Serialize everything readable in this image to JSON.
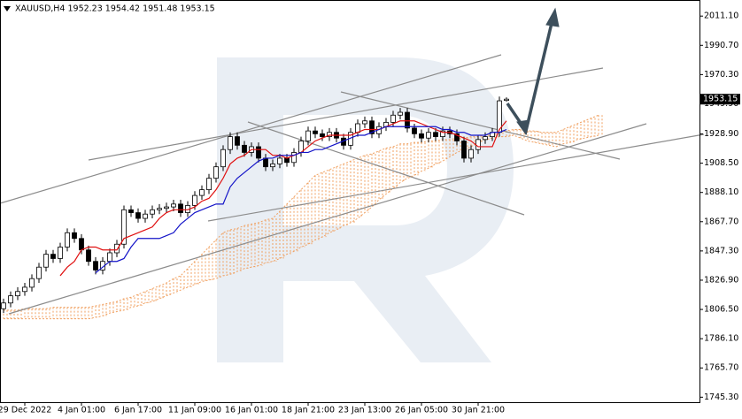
{
  "chart_data": {
    "type": "candlestick",
    "title": "XAUUSD,H4  1952.23 1954.42 1951.48 1953.15",
    "categories": [
      null,
      null,
      null,
      "29 Dec 2022",
      null,
      null,
      null,
      null,
      null,
      null,
      null,
      "4 Jan 01:00",
      null,
      null,
      null,
      null,
      null,
      null,
      null,
      "6 Jan 17:00",
      null,
      null,
      null,
      null,
      null,
      null,
      null,
      "11 Jan 09:00",
      null,
      null,
      null,
      null,
      null,
      null,
      null,
      "16 Jan 01:00",
      null,
      null,
      null,
      null,
      null,
      null,
      null,
      "18 Jan 21:00",
      null,
      null,
      null,
      null,
      null,
      null,
      null,
      "23 Jan 13:00",
      null,
      null,
      null,
      null,
      null,
      null,
      null,
      "26 Jan 05:00",
      null,
      null,
      null,
      null,
      null,
      null,
      null,
      "30 Jan 21:00",
      null,
      null,
      null,
      null
    ],
    "open": [
      1807,
      1811,
      1816,
      1819,
      1822,
      1828,
      1836,
      1845,
      1842,
      1850,
      1860,
      1856,
      1848,
      1840,
      1834,
      1840,
      1846,
      1852,
      1876,
      1874,
      1870,
      1873,
      1876,
      1877,
      1878,
      1880,
      1874,
      1879,
      1886,
      1890,
      1898,
      1906,
      1918,
      1927,
      1921,
      1916,
      1920,
      1912,
      1906,
      1908,
      1912,
      1909,
      1916,
      1924,
      1931,
      1929,
      1927,
      1930,
      1926,
      1921,
      1930,
      1936,
      1938,
      1929,
      1934,
      1937,
      1942,
      1944,
      1933,
      1929,
      1926,
      1930,
      1927,
      1931,
      1929,
      1924,
      1912,
      1918,
      1925,
      1927,
      1930,
      1952.23
    ],
    "high": [
      1814,
      1819,
      1822,
      1825,
      1831,
      1839,
      1848,
      1848,
      1853,
      1863,
      1863,
      1859,
      1851,
      1843,
      1843,
      1849,
      1855,
      1879,
      1879,
      1877,
      1876,
      1879,
      1880,
      1881,
      1883,
      1883,
      1882,
      1889,
      1893,
      1901,
      1909,
      1921,
      1930,
      1930,
      1924,
      1923,
      1923,
      1915,
      1911,
      1915,
      1915,
      1919,
      1927,
      1934,
      1934,
      1932,
      1933,
      1933,
      1929,
      1933,
      1939,
      1941,
      1941,
      1937,
      1940,
      1945,
      1947,
      1947,
      1936,
      1932,
      1933,
      1933,
      1934,
      1934,
      1932,
      1927,
      1921,
      1928,
      1930,
      1933,
      1955,
      1954.42
    ],
    "low": [
      1804,
      1808,
      1813,
      1816,
      1819,
      1825,
      1833,
      1839,
      1839,
      1847,
      1853,
      1845,
      1837,
      1831,
      1831,
      1837,
      1843,
      1849,
      1871,
      1867,
      1867,
      1870,
      1873,
      1874,
      1875,
      1871,
      1871,
      1876,
      1883,
      1887,
      1895,
      1903,
      1915,
      1918,
      1913,
      1913,
      1909,
      1903,
      1903,
      1905,
      1906,
      1906,
      1913,
      1921,
      1926,
      1924,
      1924,
      1923,
      1918,
      1918,
      1927,
      1933,
      1926,
      1926,
      1931,
      1934,
      1939,
      1930,
      1926,
      1923,
      1923,
      1924,
      1924,
      1926,
      1921,
      1909,
      1909,
      1915,
      1922,
      1924,
      1927,
      1951.48
    ],
    "close": [
      1811,
      1816,
      1819,
      1822,
      1828,
      1836,
      1845,
      1842,
      1850,
      1860,
      1856,
      1848,
      1840,
      1834,
      1840,
      1846,
      1852,
      1876,
      1874,
      1870,
      1873,
      1876,
      1877,
      1878,
      1880,
      1874,
      1879,
      1886,
      1890,
      1898,
      1906,
      1918,
      1927,
      1921,
      1916,
      1920,
      1912,
      1906,
      1908,
      1912,
      1909,
      1916,
      1924,
      1931,
      1929,
      1927,
      1930,
      1926,
      1921,
      1930,
      1936,
      1938,
      1929,
      1934,
      1937,
      1942,
      1944,
      1933,
      1929,
      1926,
      1930,
      1927,
      1931,
      1929,
      1924,
      1912,
      1918,
      1925,
      1927,
      1930,
      1952,
      1953.15
    ],
    "bull_color": "#ffffff",
    "bear_color": "#000000",
    "series": [
      {
        "color": "#e01010",
        "values": [
          null,
          null,
          null,
          null,
          null,
          null,
          null,
          null,
          1830,
          1836,
          1840,
          1848,
          1850,
          1850,
          1848,
          1848,
          1848,
          1856,
          1858,
          1860,
          1862,
          1864,
          1870,
          1874,
          1876,
          1876,
          1876,
          1878,
          1882,
          1884,
          1890,
          1898,
          1908,
          1912,
          1914,
          1918,
          1918,
          1918,
          1914,
          1914,
          1912,
          1914,
          1916,
          1920,
          1924,
          1926,
          1928,
          1928,
          1928,
          1928,
          1930,
          1932,
          1932,
          1932,
          1934,
          1936,
          1938,
          1938,
          1938,
          1936,
          1934,
          1932,
          1930,
          1930,
          1928,
          1926,
          1924,
          1920,
          1920,
          1920,
          1932,
          1938
        ]
      },
      {
        "color": "#1414c8",
        "values": [
          null,
          null,
          null,
          null,
          null,
          null,
          null,
          null,
          null,
          null,
          null,
          null,
          null,
          1832,
          1836,
          1840,
          1840,
          1842,
          1850,
          1856,
          1856,
          1856,
          1856,
          1858,
          1860,
          1866,
          1870,
          1874,
          1876,
          1878,
          1880,
          1880,
          1892,
          1898,
          1902,
          1906,
          1910,
          1912,
          1912,
          1914,
          1914,
          1914,
          1916,
          1916,
          1918,
          1918,
          1920,
          1922,
          1924,
          1926,
          1928,
          1928,
          1930,
          1932,
          1934,
          1934,
          1934,
          1934,
          1934,
          1934,
          1934,
          1934,
          1932,
          1932,
          1930,
          1930,
          1928,
          1928,
          1928,
          1930,
          1930,
          1932
        ]
      }
    ],
    "cloud": {
      "color": "#f0a060",
      "upper": [
        1806,
        1806,
        1806,
        1807,
        1807,
        1807,
        1807,
        1808,
        1808,
        1808,
        1808,
        1808,
        1808,
        1809,
        1810,
        1811,
        1812,
        1814,
        1815,
        1817,
        1819,
        1821,
        1823,
        1825,
        1828,
        1830,
        1835,
        1840,
        1845,
        1850,
        1855,
        1860,
        1862,
        1863,
        1865,
        1866,
        1867,
        1869,
        1870,
        1875,
        1880,
        1885,
        1890,
        1895,
        1900,
        1902,
        1904,
        1906,
        1908,
        1910,
        1912,
        1914,
        1915,
        1917,
        1919,
        1920,
        1922,
        1922,
        1923,
        1923,
        1924,
        1924,
        1925,
        1925,
        1926,
        1926,
        1927,
        1927,
        1928,
        1929,
        1930,
        1931,
        1932,
        1932,
        1931,
        1931,
        1930,
        1930,
        1930,
        1932,
        1934,
        1936,
        1938,
        1940,
        1942
      ],
      "lower": [
        1800,
        1800,
        1800,
        1800,
        1800,
        1800,
        1800,
        1800,
        1800,
        1800,
        1800,
        1800,
        1800,
        1801,
        1802,
        1804,
        1805,
        1806,
        1808,
        1809,
        1811,
        1812,
        1814,
        1816,
        1818,
        1820,
        1822,
        1824,
        1826,
        1827,
        1828,
        1830,
        1831,
        1833,
        1835,
        1836,
        1837,
        1839,
        1840,
        1842,
        1845,
        1847,
        1850,
        1852,
        1855,
        1857,
        1860,
        1862,
        1865,
        1867,
        1870,
        1874,
        1878,
        1883,
        1887,
        1891,
        1895,
        1898,
        1900,
        1903,
        1905,
        1908,
        1910,
        1913,
        1916,
        1918,
        1920,
        1923,
        1925,
        1926,
        1927,
        1927,
        1928,
        1926,
        1924,
        1923,
        1922,
        1921,
        1920,
        1922,
        1923,
        1925,
        1926,
        1927,
        1928
      ]
    },
    "last_price": 1953.15,
    "ylim": [
      1741.8,
      2021.7
    ],
    "yticks": [
      {
        "value": 2011.1,
        "label": "2011.10"
      },
      {
        "value": 1990.7,
        "label": "1990.70"
      },
      {
        "value": 1970.3,
        "label": "1970.30"
      },
      {
        "value": 1949.9,
        "label": "1949.90"
      },
      {
        "value": 1928.9,
        "label": "1928.90"
      },
      {
        "value": 1908.5,
        "label": "1908.50"
      },
      {
        "value": 1888.1,
        "label": "1888.10"
      },
      {
        "value": 1867.7,
        "label": "1867.70"
      },
      {
        "value": 1847.3,
        "label": "1847.30"
      },
      {
        "value": 1826.9,
        "label": "1826.90"
      },
      {
        "value": 1806.5,
        "label": "1806.50"
      },
      {
        "value": 1786.1,
        "label": "1786.10"
      },
      {
        "value": 1765.7,
        "label": "1765.70"
      },
      {
        "value": 1745.3,
        "label": "1745.30"
      }
    ],
    "grid": false
  }
}
